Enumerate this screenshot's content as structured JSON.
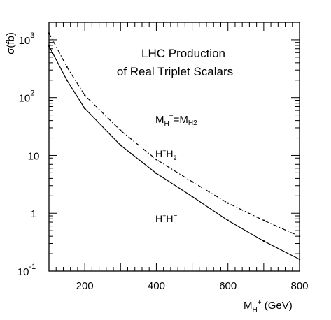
{
  "chart_data": {
    "type": "line",
    "title_lines": [
      "LHC Production",
      "of Real Triplet Scalars"
    ],
    "condition": {
      "prefix": "M",
      "sub1": "H",
      "sup1": "+",
      "eq": "=M",
      "sub2": "H2"
    },
    "ylabel": "σ(fb)",
    "xlabel": {
      "base": "M",
      "sub": "H",
      "sup": "+",
      "unit": " (GeV)"
    },
    "xlim": [
      100,
      800
    ],
    "ylim": [
      0.1,
      2000
    ],
    "yscale": "log",
    "x_ticks": [
      200,
      400,
      600,
      800
    ],
    "y_ticks": [
      {
        "value": 1000,
        "base": "10",
        "sup": "3"
      },
      {
        "value": 100,
        "base": "10",
        "sup": "2"
      },
      {
        "value": 10,
        "base": "10",
        "sup": ""
      },
      {
        "value": 1,
        "base": "1",
        "sup": ""
      },
      {
        "value": 0.1,
        "base": "10",
        "sup": "-1"
      }
    ],
    "series": [
      {
        "label": {
          "a": "H",
          "asup": "+",
          "b": "H",
          "bsub": "2",
          "bsup": ""
        },
        "style": "dashdot",
        "x": [
          100,
          150,
          200,
          300,
          400,
          500,
          600,
          700,
          800
        ],
        "y": [
          1300,
          340,
          110,
          27,
          8.5,
          3.5,
          1.5,
          0.75,
          0.4
        ]
      },
      {
        "label": {
          "a": "H",
          "asup": "+",
          "b": "H",
          "bsub": "",
          "bsup": "−"
        },
        "style": "solid",
        "x": [
          100,
          150,
          200,
          300,
          400,
          500,
          600,
          700,
          800
        ],
        "y": [
          780,
          200,
          65,
          15,
          4.9,
          1.95,
          0.75,
          0.33,
          0.16
        ]
      }
    ]
  }
}
